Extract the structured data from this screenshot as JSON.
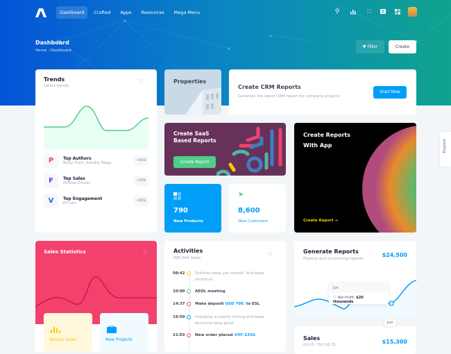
{
  "nav": {
    "items": [
      "Dashboard",
      "Crafted",
      "Apps",
      "Resources",
      "Mega Menu"
    ],
    "active": "Dashboard"
  },
  "toolbar": {
    "icons": [
      "search-icon",
      "chart-icon",
      "grid-dots-icon",
      "chat-icon",
      "apps-icon"
    ]
  },
  "header": {
    "title": "Dashboard",
    "breadcrumb": [
      "Home",
      "-",
      "Dashboard"
    ],
    "filter_label": "Filter",
    "create_label": "Create"
  },
  "trends": {
    "title": "Trends",
    "subtitle": "Latest trends",
    "items": [
      {
        "title": "Top Authors",
        "sub": "Ricky Hunt, Sandra Trepp",
        "badge": "+82$",
        "icon": "P",
        "color": "#f1416c"
      },
      {
        "title": "Top Sales",
        "sub": "PitStop Emails",
        "badge": "+82$",
        "icon": "F",
        "color": "#7239ea"
      },
      {
        "title": "Top Engagement",
        "sub": "KT.com",
        "badge": "+82$",
        "icon": "V",
        "color": "#1a6fd8"
      }
    ]
  },
  "properties": {
    "title": "Properties"
  },
  "crm": {
    "title": "Create CRM Reports",
    "subtitle": "Generate the latest CRM report for company projects",
    "button": "Start Now"
  },
  "saas": {
    "title1": "Create SaaS",
    "title2": "Based Reports",
    "button": "Create Report"
  },
  "app": {
    "title1": "Create Reports",
    "title2": "With App",
    "link": "Create Report"
  },
  "stats": [
    {
      "value": "790",
      "label": "New Products"
    },
    {
      "value": "8,600",
      "label": "New Customers"
    }
  ],
  "sales_stats": {
    "title": "Sales Statistics",
    "tiles": [
      "Weekly Sales",
      "New Projects"
    ]
  },
  "activities": {
    "title": "Activities",
    "subtitle": "890,344 Sales",
    "items": [
      {
        "time": "08:42",
        "color": "#ffc700",
        "text": "Outlines keep you honest. And keep structure",
        "muted": true
      },
      {
        "time": "10:00",
        "color": "#50cd89",
        "text": "AEOL meeting"
      },
      {
        "time": "14:37",
        "color": "#f1416c",
        "text": "Make deposit ",
        "link": "USD 700.",
        "after": " to ESL"
      },
      {
        "time": "16:50",
        "color": "#009ef7",
        "text": "Indulging in poorly driving and keep structure keep great",
        "muted": true
      },
      {
        "time": "21:03",
        "color": "#f1416c",
        "text": "New order placed ",
        "link": "#XF-2356.",
        "after": ""
      }
    ]
  },
  "generate": {
    "title": "Generate Reports",
    "subtitle": "Finance and accounting reports",
    "amount": "$24,500",
    "tooltip_title": "Jun",
    "tooltip_label": "Net Profit:",
    "tooltip_value": "$20 thousands",
    "axis_label": "Jun"
  },
  "sales": {
    "title": "Sales",
    "subtitle": "Oct 8 - Oct 26 21",
    "amount": "$15,300"
  },
  "explore": "Explore",
  "colors": {
    "primary": "#009ef7",
    "success": "#50cd89",
    "danger": "#f1416c",
    "warning": "#ffc700"
  }
}
